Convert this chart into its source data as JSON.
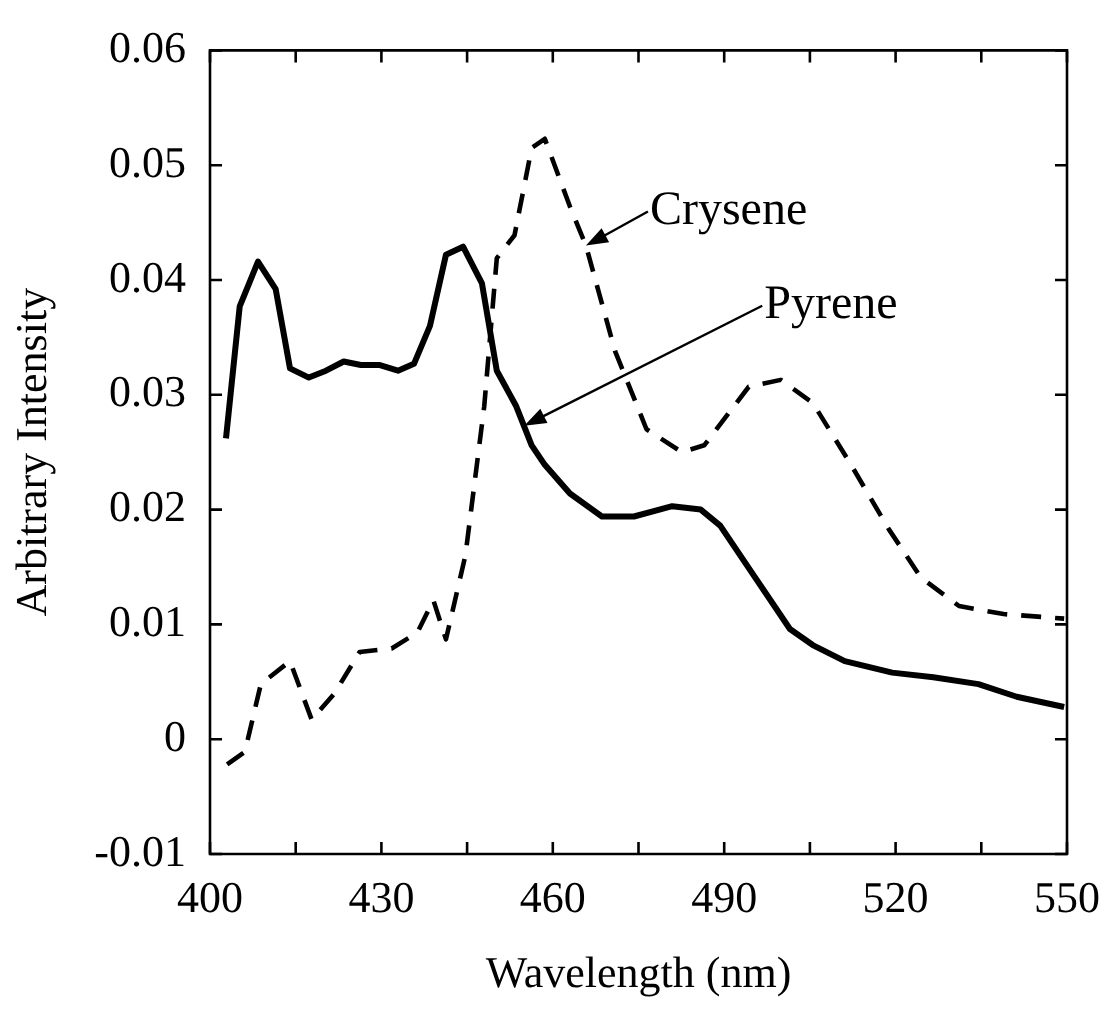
{
  "chart_data": {
    "type": "line",
    "xlabel": "Wavelength (nm)",
    "ylabel": "Arbitrary Intensity",
    "xlim": [
      400,
      550
    ],
    "ylim": [
      -0.01,
      0.06
    ],
    "xticks": [
      400,
      {
        "value": 415,
        "label": null
      },
      430,
      {
        "value": 445,
        "label": null
      },
      460,
      {
        "value": 475,
        "label": null
      },
      490,
      {
        "value": 505,
        "label": null
      },
      520,
      {
        "value": 535,
        "label": null
      },
      550
    ],
    "yticks": [
      -0.01,
      0,
      0.01,
      0.02,
      0.03,
      0.04,
      0.05,
      0.06
    ],
    "grid": false,
    "legend": false,
    "marker": "none",
    "annotations": [
      {
        "text": "Crysene",
        "x": 465.8,
        "y": 0.043
      },
      {
        "text": "Pyrene",
        "x": 455,
        "y": 0.0273
      }
    ],
    "series": [
      {
        "color": "#000000",
        "line_style": "solid",
        "x": [
          402.8,
          405.2,
          408.4,
          411.5,
          414,
          417.3,
          420.3,
          423.4,
          426.4,
          429.6,
          432.9,
          435.7,
          438.5,
          441.3,
          444.3,
          447.6,
          450.2,
          453.6,
          456.3,
          458.6,
          463,
          468.6,
          474.2,
          480.9,
          485.9,
          489.3,
          495.4,
          501.5,
          505.5,
          511.1,
          519.4,
          526.6,
          534.5,
          541.2,
          549.5
        ],
        "values": [
          0.0262,
          0.0377,
          0.0416,
          0.0392,
          0.0323,
          0.0315,
          0.0321,
          0.0329,
          0.0326,
          0.0326,
          0.0321,
          0.0327,
          0.036,
          0.0422,
          0.0429,
          0.0397,
          0.0321,
          0.029,
          0.0256,
          0.0239,
          0.0214,
          0.0194,
          0.0194,
          0.0203,
          0.02,
          0.0186,
          0.0141,
          0.0096,
          0.0082,
          0.0068,
          0.0058,
          0.0054,
          0.0048,
          0.0037,
          0.0028
        ]
      },
      {
        "color": "#000000",
        "line_style": "dashed",
        "x": [
          403,
          406.1,
          408.9,
          414,
          417.8,
          421.8,
          426.2,
          431.8,
          436.3,
          439.1,
          441.3,
          444.7,
          448,
          450.2,
          453.3,
          456.3,
          458.6,
          463,
          465.8,
          470.9,
          476.4,
          482.6,
          486.5,
          494.3,
          499.9,
          505.5,
          512.2,
          518.8,
          524.4,
          531.1,
          538.9,
          549.5
        ],
        "values": [
          -0.0022,
          -0.0011,
          0.0048,
          0.0068,
          0.0017,
          0.004,
          0.0076,
          0.0079,
          0.0093,
          0.0121,
          0.0087,
          0.016,
          0.029,
          0.0419,
          0.0439,
          0.0515,
          0.0523,
          0.0464,
          0.043,
          0.0338,
          0.027,
          0.025,
          0.0256,
          0.0307,
          0.0313,
          0.0293,
          0.0239,
          0.0183,
          0.0141,
          0.0116,
          0.0109,
          0.0105
        ]
      }
    ]
  }
}
